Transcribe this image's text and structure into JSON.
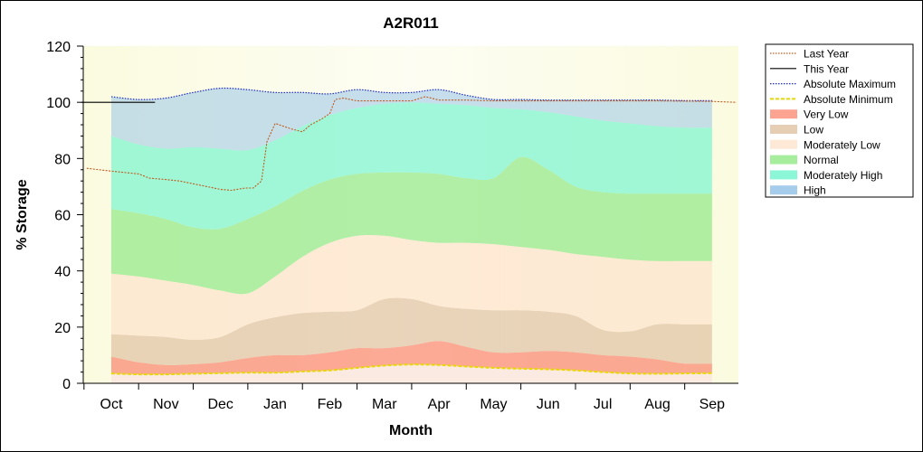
{
  "chart_data": {
    "type": "area",
    "title": "A2R011",
    "xlabel": "Month",
    "ylabel": "% Storage",
    "ylim": [
      0,
      120
    ],
    "yticks": [
      0,
      20,
      40,
      60,
      80,
      100,
      120
    ],
    "categories": [
      "Oct",
      "Nov",
      "Dec",
      "Jan",
      "Feb",
      "Mar",
      "Apr",
      "May",
      "Jun",
      "Jul",
      "Aug",
      "Sep"
    ],
    "grid": false,
    "legend_position": "right",
    "band_boundaries_x": [
      0,
      0.5,
      1,
      1.5,
      2,
      2.5,
      3,
      3.5,
      4,
      4.5,
      5,
      5.5,
      6,
      6.5,
      7,
      7.5,
      8,
      8.5,
      9,
      9.5,
      10,
      10.5,
      11
    ],
    "band_boundaries": {
      "absolute_minimum": [
        3.5,
        3.2,
        3.2,
        3.4,
        3.6,
        3.8,
        3.8,
        4.2,
        4.6,
        5.5,
        6.3,
        6.7,
        6.5,
        6.0,
        5.5,
        5.2,
        5.0,
        4.6,
        4.0,
        3.5,
        3.4,
        3.5,
        3.6
      ],
      "very_low_top": [
        9.5,
        7.5,
        6.5,
        6.8,
        7.5,
        9.0,
        10.0,
        10.0,
        11.0,
        12.5,
        12.5,
        13.5,
        15.0,
        13.0,
        11.0,
        11.0,
        11.5,
        11.0,
        10.0,
        9.5,
        8.5,
        7.0,
        7.0
      ],
      "low_top": [
        17.5,
        17.0,
        16.5,
        15.5,
        16.5,
        21.0,
        23.5,
        25.0,
        25.5,
        26.0,
        30.0,
        30.0,
        27.5,
        26.5,
        26.0,
        26.0,
        25.5,
        24.0,
        19.0,
        18.5,
        21.0,
        21.0,
        21.0
      ],
      "moderately_low_top": [
        39.0,
        38.0,
        36.5,
        35.0,
        33.0,
        32.0,
        38.0,
        45.0,
        50.0,
        52.5,
        52.5,
        51.0,
        50.0,
        50.0,
        49.5,
        48.5,
        47.5,
        46.0,
        45.0,
        44.0,
        43.5,
        43.5,
        43.5
      ],
      "normal_top": [
        62.0,
        60.5,
        58.5,
        55.5,
        55.0,
        58.5,
        63.0,
        68.5,
        72.5,
        74.5,
        75.0,
        75.0,
        74.5,
        73.0,
        73.0,
        80.5,
        76.0,
        70.0,
        68.0,
        67.5,
        67.5,
        67.5,
        67.5
      ],
      "moderately_high_top": [
        88.0,
        85.0,
        83.5,
        84.0,
        83.5,
        83.0,
        86.5,
        91.5,
        95.5,
        98.0,
        99.5,
        100.0,
        99.5,
        99.0,
        98.0,
        97.5,
        96.5,
        95.0,
        93.5,
        92.5,
        91.5,
        91.0,
        91.0
      ],
      "absolute_maximum": [
        102.0,
        101.0,
        101.5,
        103.5,
        105.0,
        104.5,
        103.5,
        103.5,
        103.0,
        104.5,
        103.5,
        103.5,
        104.5,
        102.5,
        101.0,
        101.0,
        100.8,
        100.8,
        100.8,
        100.8,
        100.8,
        100.6,
        100.6
      ]
    },
    "series": [
      {
        "name": "Last Year",
        "x": [
          -0.45,
          0,
          0.5,
          0.7,
          1,
          1.25,
          1.5,
          1.75,
          2,
          2.2,
          2.45,
          2.6,
          2.75,
          2.85,
          3.0,
          3.15,
          3.3,
          3.5,
          3.65,
          3.85,
          4.0,
          4.1,
          4.25,
          4.5,
          5.0,
          5.5,
          5.75,
          6.0,
          6.5,
          7.0,
          7.5,
          8.0,
          8.5,
          9.0,
          9.5,
          10.0,
          10.5,
          11.0,
          11.45
        ],
        "y": [
          76.5,
          75.5,
          74.5,
          73.0,
          72.5,
          72.0,
          71.0,
          70.0,
          69.0,
          68.7,
          69.5,
          69.5,
          72.0,
          86.0,
          92.5,
          91.5,
          90.5,
          89.5,
          92.0,
          94.0,
          96.0,
          101.0,
          101.5,
          100.5,
          100.5,
          100.5,
          102.0,
          100.8,
          100.8,
          100.5,
          100.5,
          100.5,
          100.5,
          100.5,
          100.5,
          100.5,
          100.4,
          100.3,
          100.0
        ]
      },
      {
        "name": "This Year",
        "x": [
          -0.55,
          0.8
        ],
        "y": [
          100.0,
          100.0
        ]
      }
    ]
  },
  "legend": [
    {
      "label": "Last Year",
      "kind": "line",
      "color": "#c05a1e",
      "dash": "dotted"
    },
    {
      "label": "This Year",
      "kind": "line",
      "color": "#000000",
      "dash": "solid"
    },
    {
      "label": "Absolute Maximum",
      "kind": "line",
      "color": "#1f2fc8",
      "dash": "dotted"
    },
    {
      "label": "Absolute Minimum",
      "kind": "line",
      "color": "#e8d800",
      "dash": "dashed"
    },
    {
      "label": "Very Low",
      "kind": "swatch",
      "color": "#fb8c75"
    },
    {
      "label": "Low",
      "kind": "swatch",
      "color": "#e0c2a2"
    },
    {
      "label": "Moderately Low",
      "kind": "swatch",
      "color": "#fde4cc"
    },
    {
      "label": "Normal",
      "kind": "swatch",
      "color": "#90e886"
    },
    {
      "label": "Moderately High",
      "kind": "swatch",
      "color": "#6ff5cd"
    },
    {
      "label": "High",
      "kind": "swatch",
      "color": "#8fbfe5"
    }
  ],
  "colors": {
    "absolute_minimum_band": "#fbe8e0",
    "very_low": "#fb8c75",
    "low": "#e0c2a2",
    "moderately_low": "#fde4cc",
    "normal": "#90e886",
    "moderately_high": "#6ff5cd",
    "high": "#8fbfe5",
    "plot_background": "#fdfde3"
  }
}
